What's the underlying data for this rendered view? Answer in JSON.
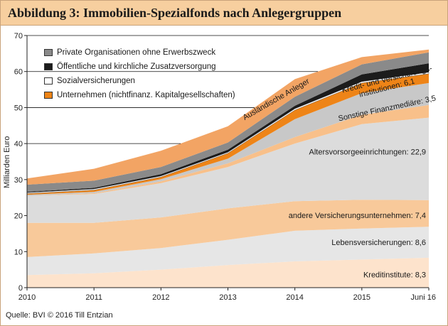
{
  "title": "Abbildung 3: Immobilien-Spezialfonds nach Anlegergruppen",
  "source": "Quelle: BVI © 2016 Till Entzian",
  "colors": {
    "kreditinstitute": "#fde3cc",
    "lebensversicherungen": "#e6e6e6",
    "andere_versicherungsunternehmen": "#f8c99a",
    "altersvorsorgeeinrichtungen": "#dcdcdc",
    "sonstige_finanzmediaere": "#f8c08a",
    "kredit_und_versicherungsinstitutionen": "#c8c8c8",
    "unternehmen": "#ee8417",
    "sozialversicherungen": "#ffffff",
    "oeffentliche_zusatzversorgung": "#1c1c1c",
    "private_organisationen": "#8a8a8a",
    "auslaendische_anleger": "#f2a464",
    "frame": "#c9a27a",
    "title_bg": "#f7cf9f"
  },
  "chart_data": {
    "type": "area",
    "stacked": true,
    "x": [
      "2010",
      "2011",
      "2012",
      "2013",
      "2014",
      "2015",
      "Juni 16"
    ],
    "ylabel": "Milliarden Euro",
    "ylim": [
      0,
      70
    ],
    "yticks": [
      0,
      10,
      20,
      30,
      40,
      50,
      60,
      70
    ],
    "series": [
      {
        "name": "Kreditinstitute: 8,3",
        "key": "kreditinstitute",
        "values": [
          3.5,
          4.0,
          5.0,
          6.3,
          7.3,
          7.8,
          8.3
        ]
      },
      {
        "name": "Lebensversicherungen: 8,6",
        "key": "lebensversicherungen",
        "values": [
          5.0,
          5.5,
          6.0,
          7.0,
          8.5,
          8.6,
          8.6
        ]
      },
      {
        "name": "andere Versicherungsunternehmen: 7,4",
        "key": "andere_versicherungsunternehmen",
        "values": [
          9.5,
          8.5,
          8.5,
          8.7,
          8.2,
          8.0,
          7.4
        ]
      },
      {
        "name": "Altersvorsorgeeinrichtungen: 22,9",
        "key": "altersvorsorgeeinrichtungen",
        "values": [
          7.5,
          8.0,
          9.5,
          11.5,
          16.0,
          21.0,
          22.9
        ]
      },
      {
        "name": "Sonstige Finanzmediäre: 3,5",
        "key": "sonstige_finanzmediaere",
        "values": [
          0.0,
          0.2,
          0.5,
          1.0,
          1.8,
          2.6,
          3.5
        ]
      },
      {
        "name": "Kredit- und Versicherungsinstitutionen: 6,1",
        "key": "kredit_und_versicherungsinstitutionen",
        "values": [
          0.3,
          0.4,
          0.6,
          1.3,
          5.0,
          6.0,
          6.1
        ]
      },
      {
        "name": "Unternehmen (nichtfinanz. Kapitalgesellschaften)",
        "key": "unternehmen",
        "values": [
          0.3,
          0.5,
          0.6,
          1.5,
          2.5,
          2.8,
          2.6
        ]
      },
      {
        "name": "Sozialversicherungen",
        "key": "sozialversicherungen",
        "values": [
          0.3,
          0.3,
          0.3,
          0.3,
          0.4,
          0.4,
          0.4
        ]
      },
      {
        "name": "Öffentliche und kirchliche Zusatzversorgung",
        "key": "oeffentliche_zusatzversorgung",
        "values": [
          0.2,
          0.3,
          0.5,
          0.7,
          0.8,
          2.0,
          2.5
        ]
      },
      {
        "name": "Private Organisationen ohne Erwerbszweck",
        "key": "private_organisationen",
        "values": [
          2.0,
          2.0,
          2.0,
          2.0,
          2.5,
          2.8,
          3.0
        ]
      },
      {
        "name": "Ausländische Anleger",
        "key": "auslaendische_anleger",
        "values": [
          1.7,
          3.3,
          4.5,
          4.5,
          4.9,
          2.0,
          0.8
        ]
      }
    ],
    "legend": {
      "position": "top-left",
      "entries": [
        {
          "label": "Private Organisationen ohne Erwerbszweck",
          "key": "private_organisationen"
        },
        {
          "label": "Öffentliche und kirchliche Zusatzversorgung",
          "key": "oeffentliche_zusatzversorgung"
        },
        {
          "label": "Sozialversicherungen",
          "key": "sozialversicherungen"
        },
        {
          "label": "Unternehmen (nichtfinanz. Kapitalgesellschaften)",
          "key": "unternehmen"
        }
      ]
    },
    "annotations": [
      {
        "text": "Ausländische Anleger",
        "key": "auslaendische_anleger"
      },
      {
        "text": "Kredit- und Versicherungs-",
        "key": "kredit_und_versicherungsinstitutionen"
      },
      {
        "text": "institutionen: 6,1",
        "key": "kredit_und_versicherungsinstitutionen"
      },
      {
        "text": "Sonstige Finanzmediäre: 3,5",
        "key": "sonstige_finanzmediaere"
      },
      {
        "text": "Altersvorsorgeeinrichtungen: 22,9",
        "key": "altersvorsorgeeinrichtungen"
      },
      {
        "text": "andere Versicherungsunternehmen: 7,4",
        "key": "andere_versicherungsunternehmen"
      },
      {
        "text": "Lebensversicherungen: 8,6",
        "key": "lebensversicherungen"
      },
      {
        "text": "Kreditinstitute: 8,3",
        "key": "kreditinstitute"
      }
    ],
    "grid": "horizontal"
  }
}
